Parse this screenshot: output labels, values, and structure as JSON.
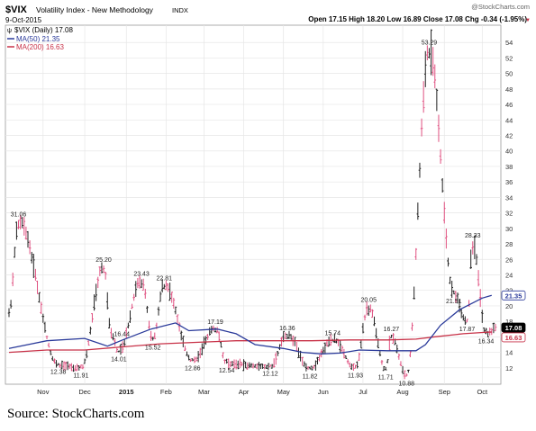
{
  "header": {
    "symbol": "$VIX",
    "name": "Volatility Index - New Methodology",
    "exchange": "INDX",
    "date": "9-Oct-2015",
    "watermark": "@StockCharts.com",
    "ohlc": "Open 17.15  High 18.20  Low 16.89  Close 17.08  Chg -0.34 (-1.95%)"
  },
  "legend": {
    "vix": "$VIX (Daily) 17.08",
    "ma50": "MA(50) 21.35",
    "ma200": "MA(200) 16.63"
  },
  "colors": {
    "bars": "#e05080",
    "bars_dark": "#202020",
    "ma50": "#2a3a9a",
    "ma200": "#c83248",
    "grid": "#e6e6e6",
    "badge_vix": "#000000",
    "badge_ma50": "#2a3a9a",
    "badge_ma200": "#c83248"
  },
  "source_caption": "Source: StockCharts.com",
  "chart_data": {
    "type": "ohlc-line",
    "y_axis_position": "right",
    "ylim": [
      10,
      56
    ],
    "yticks": [
      12,
      14,
      16,
      18,
      20,
      22,
      24,
      26,
      28,
      30,
      32,
      34,
      36,
      38,
      40,
      42,
      44,
      46,
      48,
      50,
      52,
      54
    ],
    "x_tick_labels": [
      {
        "label": "Nov",
        "t": 18
      },
      {
        "label": "Dec",
        "t": 40
      },
      {
        "label": "2015",
        "t": 62
      },
      {
        "label": "Feb",
        "t": 83
      },
      {
        "label": "Mar",
        "t": 103
      },
      {
        "label": "Apr",
        "t": 124
      },
      {
        "label": "May",
        "t": 145
      },
      {
        "label": "Jun",
        "t": 166
      },
      {
        "label": "Jul",
        "t": 187
      },
      {
        "label": "Aug",
        "t": 208
      },
      {
        "label": "Sep",
        "t": 230
      },
      {
        "label": "Oct",
        "t": 250
      }
    ],
    "x_range": [
      0,
      257
    ],
    "peaks_troughs": [
      {
        "t": 5,
        "v": 31.06,
        "label": "31.06",
        "pos": "above"
      },
      {
        "t": 26,
        "v": 12.38,
        "label": "12.38",
        "pos": "below"
      },
      {
        "t": 38,
        "v": 11.91,
        "label": "11.91",
        "pos": "below"
      },
      {
        "t": 50,
        "v": 25.2,
        "label": "25.20",
        "pos": "above"
      },
      {
        "t": 54,
        "v": 16.44,
        "label": "16.44",
        "pos": "right"
      },
      {
        "t": 58,
        "v": 14.01,
        "label": "14.01",
        "pos": "below"
      },
      {
        "t": 70,
        "v": 23.43,
        "label": "23.43",
        "pos": "above"
      },
      {
        "t": 76,
        "v": 15.52,
        "label": "15.52",
        "pos": "below"
      },
      {
        "t": 82,
        "v": 22.81,
        "label": "22.81",
        "pos": "above"
      },
      {
        "t": 97,
        "v": 12.86,
        "label": "12.86",
        "pos": "below"
      },
      {
        "t": 109,
        "v": 17.19,
        "label": "17.19",
        "pos": "above"
      },
      {
        "t": 115,
        "v": 12.54,
        "label": "12.54",
        "pos": "below"
      },
      {
        "t": 138,
        "v": 12.12,
        "label": "12.12",
        "pos": "below"
      },
      {
        "t": 147,
        "v": 16.36,
        "label": "16.36",
        "pos": "above"
      },
      {
        "t": 159,
        "v": 11.82,
        "label": "11.82",
        "pos": "below"
      },
      {
        "t": 171,
        "v": 15.74,
        "label": "15.74",
        "pos": "above"
      },
      {
        "t": 183,
        "v": 11.93,
        "label": "11.93",
        "pos": "below"
      },
      {
        "t": 190,
        "v": 20.05,
        "label": "20.05",
        "pos": "above"
      },
      {
        "t": 199,
        "v": 11.71,
        "label": "11.71",
        "pos": "below"
      },
      {
        "t": 202,
        "v": 16.27,
        "label": "16.27",
        "pos": "above"
      },
      {
        "t": 210,
        "v": 10.88,
        "label": "10.88",
        "pos": "below"
      },
      {
        "t": 222,
        "v": 53.29,
        "label": "53.29",
        "pos": "above"
      },
      {
        "t": 235,
        "v": 21.51,
        "label": "21.51",
        "pos": "below"
      },
      {
        "t": 245,
        "v": 28.33,
        "label": "28.33",
        "pos": "above"
      },
      {
        "t": 242,
        "v": 17.87,
        "label": "17.87",
        "pos": "below"
      },
      {
        "t": 252,
        "v": 16.34,
        "label": "16.34",
        "pos": "below"
      }
    ],
    "ma50": [
      [
        0,
        14.5
      ],
      [
        20,
        15.5
      ],
      [
        40,
        15.8
      ],
      [
        52,
        14.8
      ],
      [
        60,
        15.6
      ],
      [
        75,
        17
      ],
      [
        88,
        17.8
      ],
      [
        95,
        16.8
      ],
      [
        110,
        17
      ],
      [
        120,
        16.4
      ],
      [
        130,
        15
      ],
      [
        145,
        14.5
      ],
      [
        155,
        14
      ],
      [
        165,
        13.8
      ],
      [
        175,
        13.9
      ],
      [
        185,
        14.3
      ],
      [
        200,
        14.2
      ],
      [
        215,
        14.2
      ],
      [
        220,
        15
      ],
      [
        228,
        17.5
      ],
      [
        238,
        19.5
      ],
      [
        250,
        21
      ],
      [
        255,
        21.35
      ]
    ],
    "ma200": [
      [
        0,
        14
      ],
      [
        20,
        14.3
      ],
      [
        40,
        14.3
      ],
      [
        60,
        14.7
      ],
      [
        80,
        15.1
      ],
      [
        100,
        15.3
      ],
      [
        120,
        15.5
      ],
      [
        140,
        15.5
      ],
      [
        160,
        15.5
      ],
      [
        180,
        15.6
      ],
      [
        200,
        15.6
      ],
      [
        215,
        15.7
      ],
      [
        225,
        16
      ],
      [
        240,
        16.4
      ],
      [
        255,
        16.63
      ]
    ],
    "price_badges": [
      {
        "label": "21.35",
        "v": 21.35,
        "series": "ma50"
      },
      {
        "label": "17.08",
        "v": 17.08,
        "series": "vix"
      },
      {
        "label": "16.63",
        "v": 16.63,
        "series": "ma200"
      }
    ]
  }
}
